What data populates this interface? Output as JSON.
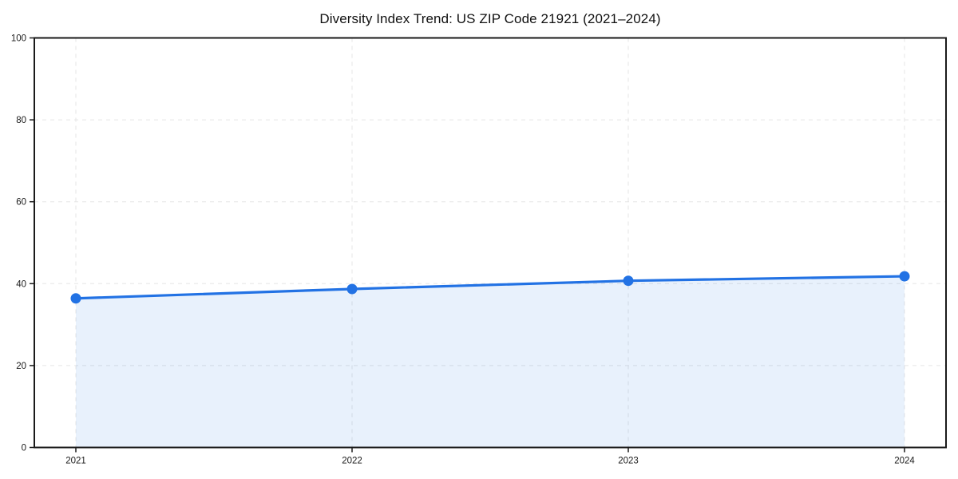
{
  "chart_data": {
    "type": "line",
    "title": "Diversity Index Trend: US ZIP Code 21921 (2021–2024)",
    "x": [
      "2021",
      "2022",
      "2023",
      "2024"
    ],
    "series": [
      {
        "name": "Diversity Index",
        "values": [
          36.4,
          38.7,
          40.7,
          41.8
        ]
      }
    ],
    "values": [
      36.4,
      38.7,
      40.7,
      41.8
    ],
    "xlabel": "",
    "ylabel": "",
    "ylim": [
      0,
      100
    ],
    "yticks": [
      0,
      20,
      40,
      60,
      80,
      100
    ],
    "grid": "dashed both axes",
    "legend": "none",
    "area_fill": true,
    "marker": "circle",
    "colors": {
      "line": "#2272e4",
      "fill": "rgba(34,114,228,0.10)",
      "grid": "#e5e5e5",
      "spine": "#1a1a1a",
      "text": "#1a1a1a",
      "background": "#ffffff"
    }
  }
}
